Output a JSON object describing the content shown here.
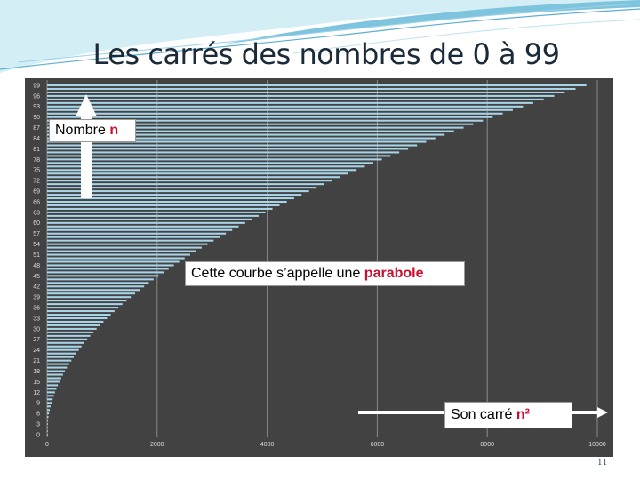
{
  "slide": {
    "title": "Les carrés des nombres de 0 à 99",
    "page_number": "11"
  },
  "annotations": {
    "n_label_prefix": "Nombre ",
    "n_label_highlight": "n",
    "curve_label_prefix": "Cette courbe s’appelle une ",
    "curve_label_highlight": "parabole",
    "square_label_prefix": "Son carré ",
    "square_label_highlight": "n²"
  },
  "colors": {
    "bar": "#a9d4e8",
    "background": "#424242",
    "grid": "#8a8a8a",
    "highlight": "#c8102e",
    "tick_text": "#dddddd"
  },
  "chart_data": {
    "type": "bar",
    "orientation": "horizontal",
    "y_values": "integers 0 to 99",
    "y_count": 100,
    "x_formula": "n²",
    "xlim": [
      0,
      10000
    ],
    "x_ticks": [
      "0",
      "2000",
      "4000",
      "6000",
      "8000",
      "10000"
    ],
    "y_tick_labels": [
      "0",
      "3",
      "6",
      "9",
      "12",
      "15",
      "18",
      "21",
      "24",
      "27",
      "30",
      "33",
      "36",
      "39",
      "42",
      "45",
      "48",
      "51",
      "54",
      "57",
      "60",
      "63",
      "66",
      "69",
      "72",
      "75",
      "78",
      "81",
      "84",
      "87",
      "90",
      "93",
      "96",
      "99"
    ],
    "grid": "vertical",
    "title": "",
    "xlabel": "",
    "ylabel": ""
  }
}
